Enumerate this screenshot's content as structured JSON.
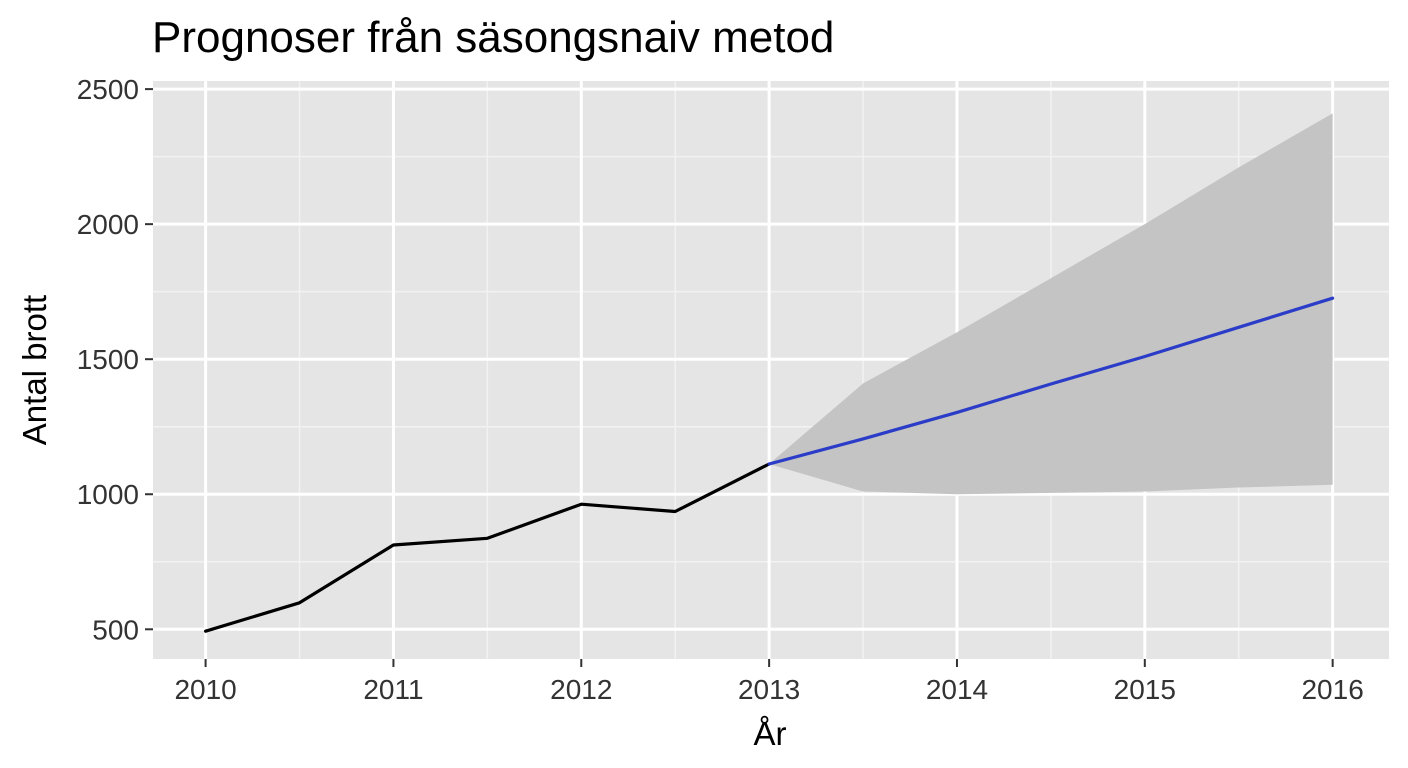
{
  "chart_data": {
    "type": "line",
    "title": "Prognoser från säsongsnaiv metod",
    "xlabel": "År",
    "ylabel": "Antal brott",
    "xlim": [
      2009.72,
      2016.3
    ],
    "ylim": [
      390,
      2530
    ],
    "x_ticks": [
      2010,
      2011,
      2012,
      2013,
      2014,
      2015,
      2016
    ],
    "y_ticks": [
      500,
      1000,
      1500,
      2000,
      2500
    ],
    "grid": true,
    "legend": "none",
    "colors": {
      "panel": "#e5e5e5",
      "grid_major": "#ffffff",
      "grid_minor": "#f2f2f2",
      "observed": "#000000",
      "forecast": "#2a3cc8",
      "interval": "#c4c4c4",
      "tick": "#333333"
    },
    "series": [
      {
        "x": [
          2010,
          2010.5,
          2011,
          2011.5,
          2012,
          2012.5,
          2013
        ],
        "values": [
          493,
          598,
          812,
          837,
          963,
          936,
          1112
        ]
      },
      {
        "x": [
          2013,
          2013.5,
          2014,
          2014.5,
          2015,
          2015.5,
          2016
        ],
        "values": [
          1112,
          1205,
          1303,
          1408,
          1510,
          1618,
          1726
        ]
      }
    ],
    "interval": {
      "x": [
        2013,
        2013.5,
        2014,
        2014.5,
        2015,
        2015.5,
        2016
      ],
      "lower": [
        1112,
        1010,
        1000,
        1005,
        1010,
        1025,
        1035
      ],
      "upper": [
        1112,
        1410,
        1600,
        1800,
        2000,
        2210,
        2410
      ]
    }
  }
}
